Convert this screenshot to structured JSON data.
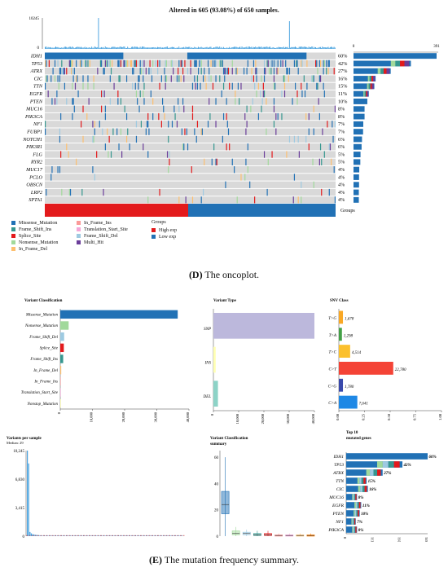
{
  "oncoplot": {
    "title": "Altered in 605 (93.08%) of 650 samples.",
    "top_axis": [
      "10245",
      "0"
    ],
    "right_axis": [
      "0",
      "391"
    ],
    "groups_label": "Groups",
    "caption_letter": "(D)",
    "caption_text": " The oncoplot."
  },
  "oncoplot_legend": {
    "items": [
      {
        "label": "Missense_Mutation",
        "color": "#2171b5"
      },
      {
        "label": "Frame_Shift_Ins",
        "color": "#35978f"
      },
      {
        "label": "Splice_Site",
        "color": "#e31a1c"
      },
      {
        "label": "Nonsense_Mutation",
        "color": "#a1d99b"
      },
      {
        "label": "In_Frame_Del",
        "color": "#fdbf6f"
      },
      {
        "label": "In_Frame_Ins",
        "color": "#fb9a99"
      },
      {
        "label": "Translation_Start_Site",
        "color": "#f4a6d7"
      },
      {
        "label": "Frame_Shift_Del",
        "color": "#9ecae1"
      },
      {
        "label": "Multi_Hit",
        "color": "#6a3d9a"
      }
    ],
    "groups_title": "Groups",
    "groups": [
      {
        "label": "High exp",
        "color": "#e31a1c"
      },
      {
        "label": "Low exp",
        "color": "#2171b5"
      }
    ]
  },
  "summary": {
    "caption_letter": "(E)",
    "caption_text": " The mutation frequency summary.",
    "variant_classification_title": "Variant Classification",
    "variant_type_title": "Variant Type",
    "snv_class_title": "SNV Class",
    "variants_per_sample_title": "Variants per sample",
    "median_label": "Median: 29",
    "vc_summary_title_1": "Variant Classification",
    "vc_summary_title_2": "summary",
    "top10_title_1": "Top 10",
    "top10_title_2": "mutated genes"
  },
  "chart_data": [
    {
      "type": "bar",
      "name": "oncoplot-genes",
      "categories": [
        "IDH1",
        "TP53",
        "ATRX",
        "CIC",
        "TTN",
        "EGFR",
        "PTEN",
        "MUC16",
        "PIK3CA",
        "NF1",
        "FUBP1",
        "NOTCH1",
        "PIK3R1",
        "FLG",
        "RYR2",
        "MUC17",
        "PCLO",
        "OBSCN",
        "LRP2",
        "SPTA1"
      ],
      "percent_labels": [
        "60%",
        "42%",
        "27%",
        "16%",
        "15%",
        "11%",
        "10%",
        "8%",
        "8%",
        "7%",
        "7%",
        "6%",
        "6%",
        "5%",
        "5%",
        "4%",
        "4%",
        "4%",
        "4%",
        "4%"
      ],
      "values": [
        391,
        270,
        175,
        104,
        98,
        72,
        65,
        52,
        52,
        46,
        45,
        40,
        38,
        33,
        32,
        27,
        26,
        26,
        25,
        25
      ],
      "xlim": [
        0,
        391
      ]
    },
    {
      "type": "bar",
      "name": "variant-classification",
      "title": "Variant Classification",
      "categories": [
        "Missense_Mutation",
        "Nonsense_Mutation",
        "Frame_Shift_Del",
        "Splice_Site",
        "Frame_Shift_Ins",
        "In_Frame_Del",
        "In_Frame_Ins",
        "Translation_Start_Site",
        "Nonstop_Mutation"
      ],
      "values": [
        36500,
        2600,
        1200,
        1100,
        900,
        300,
        150,
        80,
        40
      ],
      "colors": [
        "#2171b5",
        "#a1d99b",
        "#9ecae1",
        "#e31a1c",
        "#35978f",
        "#fdbf6f",
        "#fb9a99",
        "#f4a6d7",
        "#ffff99"
      ],
      "ticks": [
        "0",
        "10,000",
        "20,000",
        "30,000",
        "40,000"
      ],
      "xlim": [
        0,
        40000
      ]
    },
    {
      "type": "bar",
      "name": "variant-type",
      "title": "Variant Type",
      "categories": [
        "SNP",
        "INS",
        "DEL"
      ],
      "values": [
        40000,
        900,
        1800
      ],
      "colors": [
        "#bcb8dc",
        "#ffffb3",
        "#8dd3c7"
      ],
      "ticks": [
        "0",
        "10,000",
        "20,000",
        "30,000",
        "40,000"
      ],
      "xlim": [
        0,
        40000
      ]
    },
    {
      "type": "bar",
      "name": "snv-class",
      "title": "SNV Class",
      "categories": [
        "T>G",
        "T>A",
        "T>C",
        "C>T",
        "C>G",
        "C>A"
      ],
      "values": [
        1678,
        1298,
        4514,
        22780,
        1780,
        7641
      ],
      "value_labels": [
        "1,678",
        "1,298",
        "4,514",
        "22,780",
        "1,780",
        "7,641"
      ],
      "fractions": [
        0.04,
        0.03,
        0.11,
        0.53,
        0.04,
        0.18
      ],
      "colors": [
        "#f9a825",
        "#43a047",
        "#fbc02d",
        "#f44336",
        "#3949ab",
        "#1e88e5"
      ],
      "ticks": [
        "0.00",
        "0.25",
        "0.50",
        "0.75",
        "1.00"
      ],
      "xlim": [
        0,
        1
      ]
    },
    {
      "type": "bar",
      "name": "variants-per-sample",
      "title": "Variants per sample",
      "yticks": [
        "0",
        "3,415",
        "6,830",
        "10,245"
      ],
      "ylim": [
        0,
        10245
      ],
      "median": 29
    },
    {
      "type": "box",
      "name": "variant-classification-summary",
      "yticks": [
        "0",
        "20",
        "40",
        "60"
      ],
      "ylim": [
        0,
        65
      ],
      "boxes": [
        {
          "color": "#2171b5",
          "q1": 17,
          "median": 24,
          "q3": 34,
          "whisker_high": 60
        },
        {
          "color": "#a1d99b",
          "q1": 1,
          "median": 2,
          "q3": 4,
          "whisker_high": 7
        },
        {
          "color": "#9ecae1",
          "q1": 1,
          "median": 2,
          "q3": 3,
          "whisker_high": 5
        },
        {
          "color": "#35978f",
          "q1": 0.5,
          "median": 1,
          "q3": 2,
          "whisker_high": 4
        },
        {
          "color": "#e31a1c",
          "q1": 0.5,
          "median": 1,
          "q3": 2,
          "whisker_high": 4
        },
        {
          "color": "#fb9a99",
          "q1": 0,
          "median": 0.5,
          "q3": 1,
          "whisker_high": 2
        },
        {
          "color": "#f4a6d7",
          "q1": 0,
          "median": 0.5,
          "q3": 1,
          "whisker_high": 2
        },
        {
          "color": "#fdbf6f",
          "q1": 0,
          "median": 0.5,
          "q3": 1,
          "whisker_high": 2
        },
        {
          "color": "#ff7f00",
          "q1": 0,
          "median": 0.5,
          "q3": 1,
          "whisker_high": 2
        }
      ]
    },
    {
      "type": "bar",
      "name": "top10-genes",
      "title": "Top 10 mutated genes",
      "categories": [
        "IDH1",
        "TP53",
        "ATRX",
        "TTN",
        "CIC",
        "MUC16",
        "EGFR",
        "PTEN",
        "NF1",
        "PIK3CA"
      ],
      "percent_labels": [
        "60%",
        "42%",
        "27%",
        "15%",
        "16%",
        "8%",
        "11%",
        "10%",
        "7%",
        "8%"
      ],
      "values": [
        391,
        270,
        175,
        98,
        104,
        52,
        72,
        65,
        46,
        52
      ],
      "ticks": [
        "0",
        "131",
        "261",
        "391"
      ],
      "xlim": [
        0,
        391
      ]
    }
  ]
}
